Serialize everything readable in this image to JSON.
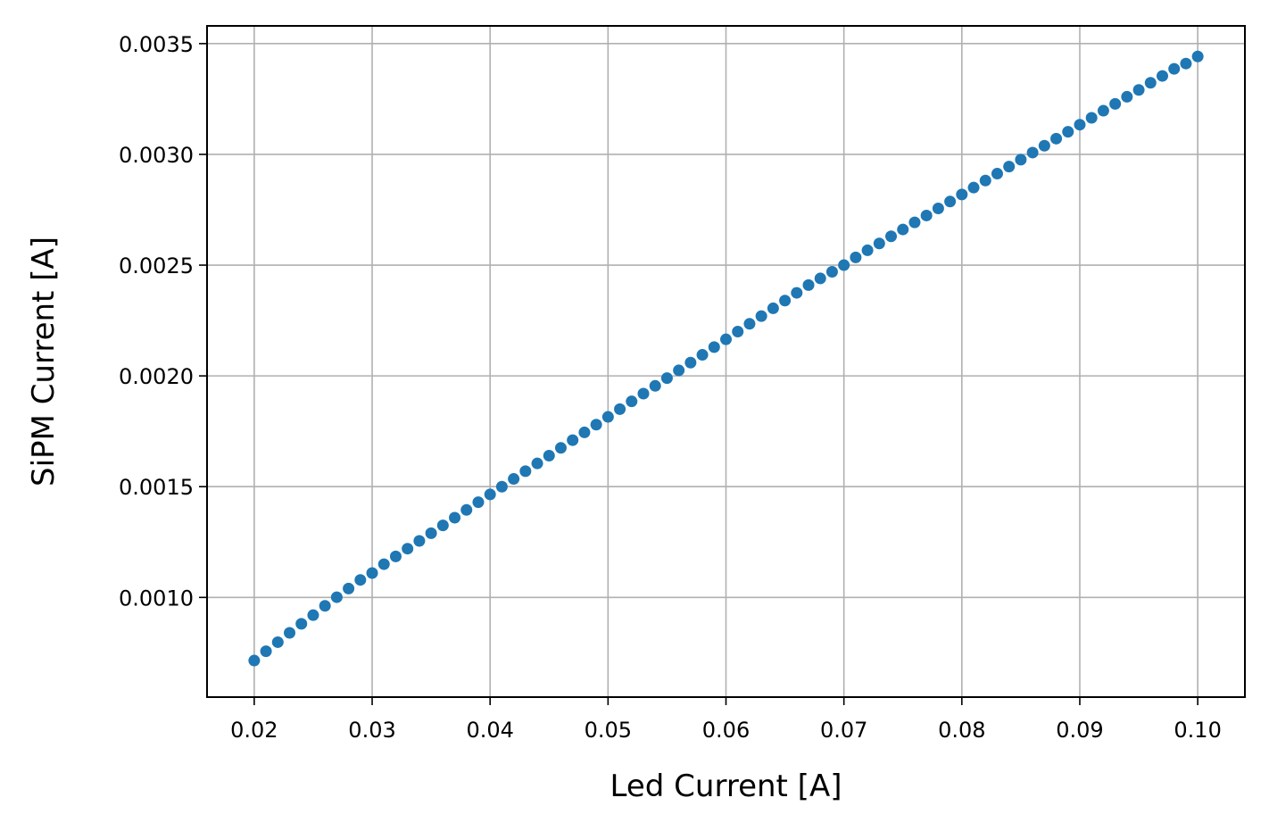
{
  "chart_data": {
    "type": "scatter",
    "title": "",
    "xlabel": "Led Current [A]",
    "ylabel": "SiPM Current [A]",
    "xlim": [
      0.016,
      0.104
    ],
    "ylim": [
      0.00055,
      0.00358
    ],
    "xticks": [
      "0.02",
      "0.03",
      "0.04",
      "0.05",
      "0.06",
      "0.07",
      "0.08",
      "0.09",
      "0.10"
    ],
    "yticks": [
      "0.0010",
      "0.0015",
      "0.0020",
      "0.0025",
      "0.0030",
      "0.0035"
    ],
    "grid": true,
    "legend": "none",
    "colors": {
      "marker": "#1f77b4",
      "grid": "#b0b0b0",
      "axes": "#000000"
    },
    "series": [
      {
        "x": [
          0.02,
          0.021,
          0.022,
          0.023,
          0.024,
          0.025,
          0.026,
          0.027,
          0.028,
          0.029,
          0.03,
          0.031,
          0.032,
          0.033,
          0.034,
          0.035,
          0.036,
          0.037,
          0.038,
          0.039,
          0.04,
          0.041,
          0.042,
          0.043,
          0.044,
          0.045,
          0.046,
          0.047,
          0.048,
          0.049,
          0.05,
          0.051,
          0.052,
          0.053,
          0.054,
          0.055,
          0.056,
          0.057,
          0.058,
          0.059,
          0.06,
          0.061,
          0.062,
          0.063,
          0.064,
          0.065,
          0.066,
          0.067,
          0.068,
          0.069,
          0.07,
          0.071,
          0.072,
          0.073,
          0.074,
          0.075,
          0.076,
          0.077,
          0.078,
          0.079,
          0.08,
          0.081,
          0.082,
          0.083,
          0.084,
          0.085,
          0.086,
          0.087,
          0.088,
          0.089,
          0.09,
          0.091,
          0.092,
          0.093,
          0.094,
          0.095,
          0.096,
          0.097,
          0.098,
          0.099,
          0.1
        ],
        "y": [
          0.000715,
          0.000757,
          0.000798,
          0.00084,
          0.000881,
          0.00092,
          0.000962,
          0.001001,
          0.00104,
          0.001079,
          0.00111,
          0.00115,
          0.001185,
          0.00122,
          0.001255,
          0.00129,
          0.001325,
          0.00136,
          0.001395,
          0.00143,
          0.001465,
          0.0015,
          0.001535,
          0.00157,
          0.001605,
          0.00164,
          0.001675,
          0.00171,
          0.001745,
          0.00178,
          0.001815,
          0.00185,
          0.001885,
          0.00192,
          0.001955,
          0.00199,
          0.002025,
          0.00206,
          0.002095,
          0.00213,
          0.002165,
          0.0022,
          0.002235,
          0.00227,
          0.002305,
          0.00234,
          0.002375,
          0.00241,
          0.00244,
          0.00247,
          0.0025,
          0.002535,
          0.002567,
          0.002598,
          0.00263,
          0.002661,
          0.002693,
          0.002724,
          0.002756,
          0.002787,
          0.002819,
          0.00285,
          0.002882,
          0.002913,
          0.002945,
          0.002976,
          0.003008,
          0.003039,
          0.003071,
          0.003102,
          0.003134,
          0.003165,
          0.003197,
          0.003228,
          0.00326,
          0.003291,
          0.003323,
          0.003354,
          0.003386,
          0.00341,
          0.003442
        ]
      }
    ]
  }
}
